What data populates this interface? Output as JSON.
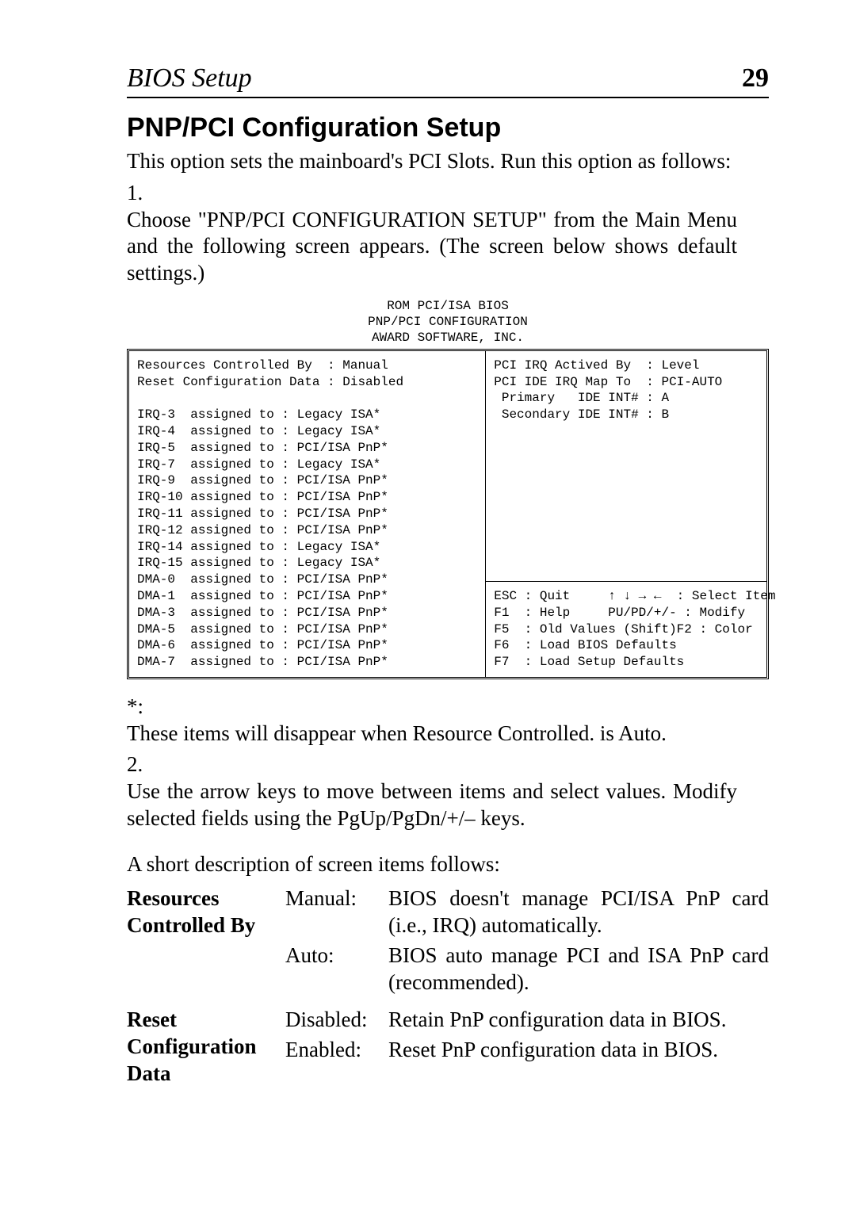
{
  "header": {
    "title": "BIOS Setup",
    "page": "29"
  },
  "section_title": "PNP/PCI Configuration Setup",
  "intro": "This option sets the mainboard's PCI Slots. Run this option as follows:",
  "steps": {
    "one_num": "1.",
    "one": "Choose \"PNP/PCI CONFIGURATION SETUP\" from the Main Menu and the following screen appears. (The screen below shows default settings.)",
    "two_num": "2.",
    "two": "Use the arrow keys to move between items and select values. Modify selected fields using the PgUp/PgDn/+/– keys."
  },
  "footnote_mark": "*:",
  "footnote": "These items will disappear when Resource Controlled. is Auto.",
  "short_desc_heading": "A short description of screen items follows:",
  "bios": {
    "header_l1": "ROM PCI/ISA BIOS",
    "header_l2": "PNP/PCI CONFIGURATION",
    "header_l3": "AWARD SOFTWARE, INC.",
    "left": "Resources Controlled By  : Manual\nReset Configuration Data : Disabled\n\nIRQ-3  assigned to : Legacy ISA*\nIRQ-4  assigned to : Legacy ISA*\nIRQ-5  assigned to : PCI/ISA PnP*\nIRQ-7  assigned to : Legacy ISA*\nIRQ-9  assigned to : PCI/ISA PnP*\nIRQ-10 assigned to : PCI/ISA PnP*\nIRQ-11 assigned to : PCI/ISA PnP*\nIRQ-12 assigned to : PCI/ISA PnP*\nIRQ-14 assigned to : Legacy ISA*\nIRQ-15 assigned to : Legacy ISA*\nDMA-0  assigned to : PCI/ISA PnP*\nDMA-1  assigned to : PCI/ISA PnP*\nDMA-3  assigned to : PCI/ISA PnP*\nDMA-5  assigned to : PCI/ISA PnP*\nDMA-6  assigned to : PCI/ISA PnP*\nDMA-7  assigned to : PCI/ISA PnP*",
    "right_top": "PCI IRQ Actived By  : Level\nPCI IDE IRQ Map To  : PCI-AUTO\n Primary   IDE INT# : A\n Secondary IDE INT# : B",
    "right_bot": "ESC : Quit     ↑ ↓ → ←  : Select Item\nF1  : Help     PU/PD/+/- : Modify\nF5  : Old Values (Shift)F2 : Color\nF6  : Load BIOS Defaults\nF7  : Load Setup Defaults"
  },
  "desc": {
    "rcb_term": "Resources Controlled By",
    "rcb_manual_label": "Manual:",
    "rcb_manual_text": "BIOS doesn't manage PCI/ISA PnP card (i.e., IRQ) automatically.",
    "rcb_auto_label": "Auto:",
    "rcb_auto_text": "BIOS auto manage PCI and ISA PnP card (recommended).",
    "rcd_term": "Reset Configuration Data",
    "rcd_disabled_label": "Disabled:",
    "rcd_disabled_text": "Retain PnP configuration data in BIOS.",
    "rcd_enabled_label": "Enabled:",
    "rcd_enabled_text": "Reset PnP configuration data in BIOS."
  }
}
